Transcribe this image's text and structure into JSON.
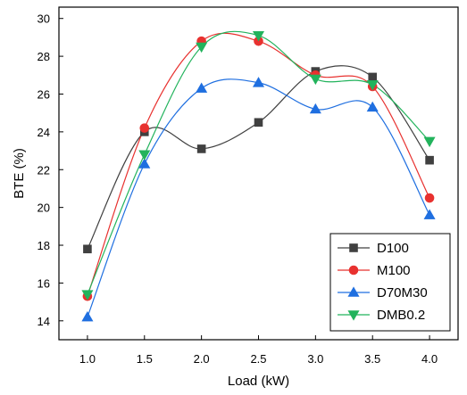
{
  "chart_data": {
    "type": "line",
    "xlabel": "Load (kW)",
    "ylabel": "BTE (%)",
    "x": [
      1.0,
      1.5,
      2.0,
      2.5,
      3.0,
      3.5,
      4.0
    ],
    "x_tick_labels": [
      "1.0",
      "1.5",
      "2.0",
      "2.5",
      "3.0",
      "3.5",
      "4.0"
    ],
    "xlim": [
      0.75,
      4.25
    ],
    "y_ticks": [
      14,
      16,
      18,
      20,
      22,
      24,
      26,
      28,
      30
    ],
    "ylim": [
      13,
      30.6
    ],
    "grid": false,
    "legend_position": "bottom-right",
    "series": [
      {
        "name": "D100",
        "values": [
          17.8,
          24.0,
          23.1,
          24.5,
          27.2,
          26.9,
          22.5
        ],
        "color": "#404040",
        "marker": "square"
      },
      {
        "name": "M100",
        "values": [
          15.3,
          24.2,
          28.8,
          28.8,
          27.0,
          26.4,
          20.5
        ],
        "color": "#e8312f",
        "marker": "circle"
      },
      {
        "name": "D70M30",
        "values": [
          14.2,
          22.3,
          26.3,
          26.6,
          25.2,
          25.3,
          19.6
        ],
        "color": "#1f6fe0",
        "marker": "triangle-up"
      },
      {
        "name": "DMB0.2",
        "values": [
          15.4,
          22.8,
          28.5,
          29.1,
          26.8,
          26.5,
          23.5
        ],
        "color": "#22b35c",
        "marker": "triangle-down"
      }
    ]
  }
}
